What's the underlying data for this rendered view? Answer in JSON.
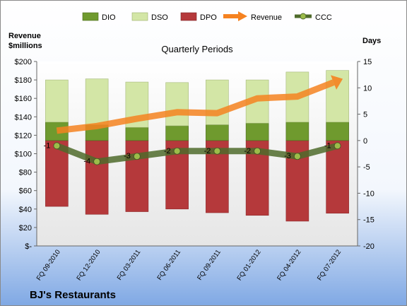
{
  "chart_data": {
    "type": "bar",
    "title": "Quarterly Periods",
    "company": "BJ's Restaurants",
    "left_axis_label": [
      "Revenue",
      "$millions"
    ],
    "right_axis_label": "Days",
    "categories": [
      "FQ 09-2010",
      "FQ 12-2010",
      "FQ 03-2011",
      "FQ 06-2011",
      "FQ 09-2011",
      "FQ 01-2012",
      "FQ 04-2012",
      "FQ 07-2012"
    ],
    "left_ticks": [
      "$-",
      "$20",
      "$40",
      "$60",
      "$80",
      "$100",
      "$120",
      "$140",
      "$160",
      "$180",
      "$200"
    ],
    "right_ticks": [
      "-20",
      "-15",
      "-10",
      "-5",
      "0",
      "5",
      "10",
      "15"
    ],
    "left_range": [
      0,
      200
    ],
    "right_range": [
      -20,
      15
    ],
    "series": [
      {
        "name": "DIO",
        "kind": "stacked-bar",
        "color": "#6f9a2e",
        "values": [
          3.5,
          3.0,
          2.5,
          2.8,
          3.0,
          3.3,
          3.5,
          3.5
        ]
      },
      {
        "name": "DSO",
        "kind": "stacked-bar",
        "color": "#d3e6a6",
        "values": [
          8.0,
          8.7,
          8.6,
          8.2,
          8.5,
          8.2,
          9.5,
          9.8
        ]
      },
      {
        "name": "DPO",
        "kind": "negative-bar",
        "color": "#b5393b",
        "values": [
          -12.5,
          -14.0,
          -13.5,
          -13.0,
          -13.7,
          -14.2,
          -15.3,
          -13.8
        ]
      },
      {
        "name": "Revenue",
        "kind": "arrow-line",
        "color": "#f58220",
        "values": [
          125,
          130,
          138,
          145,
          144,
          160,
          162,
          179
        ]
      },
      {
        "name": "CCC",
        "kind": "line",
        "color": "#4f6b2b",
        "values": [
          -1,
          -4,
          -3,
          -2,
          -2,
          -2,
          -3,
          -1
        ]
      }
    ],
    "ccc_labels": [
      "-1",
      "-4",
      "-3",
      "-2",
      "-2",
      "-2",
      "-3",
      "-1"
    ]
  }
}
